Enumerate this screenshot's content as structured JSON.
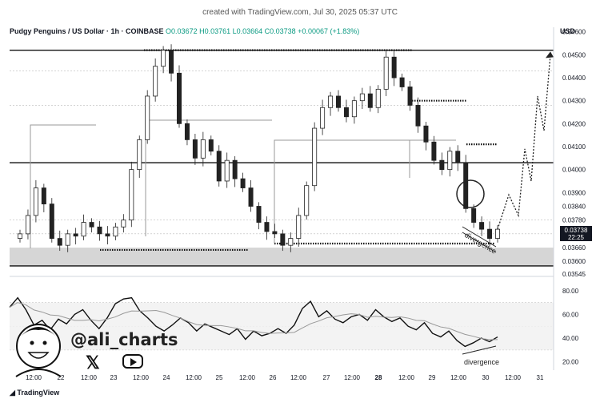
{
  "header": {
    "created_text": "created with TradingView.com, Jul 30, 2025 05:37 UTC",
    "pair": "Pudgy Penguins / US Dollar · 1h · COINBASE",
    "ohlc": "O0.03672 H0.03761 L0.03664 C0.03738 +0.00067 (+1.83%)",
    "currency": "USD"
  },
  "branding": {
    "handle": "@ali_charts",
    "x_icon": "𝕏",
    "youtube_icon": "youtube-icon",
    "footer": "TradingView"
  },
  "annotations": {
    "divergence_price": "divergence",
    "divergence_rsi": "divergence"
  },
  "last_price": {
    "price": "0.03738",
    "countdown": "22:25"
  },
  "chart_data": [
    {
      "type": "line",
      "name": "price",
      "x_ticks": [
        "12:00",
        "22",
        "12:00",
        "23",
        "12:00",
        "24",
        "12:00",
        "25",
        "12:00",
        "26",
        "12:00",
        "27",
        "12:00",
        "28",
        "12:00",
        "29",
        "12:00",
        "30",
        "12:00",
        "31"
      ],
      "y_ticks": [
        "0.04600",
        "0.04500",
        "0.04400",
        "0.04300",
        "0.04200",
        "0.04100",
        "0.04000",
        "0.03900",
        "0.03840",
        "0.03780",
        "0.03660",
        "0.03600",
        "0.03545"
      ],
      "close": [
        0.0372,
        0.038,
        0.0392,
        0.0385,
        0.037,
        0.0367,
        0.0372,
        0.0371,
        0.0377,
        0.0375,
        0.0372,
        0.0371,
        0.0375,
        0.0378,
        0.04,
        0.0413,
        0.0432,
        0.0445,
        0.0452,
        0.0442,
        0.042,
        0.0413,
        0.0405,
        0.0413,
        0.0408,
        0.0395,
        0.0404,
        0.0396,
        0.0392,
        0.0384,
        0.0377,
        0.0373,
        0.0372,
        0.0367,
        0.037,
        0.038,
        0.0393,
        0.0418,
        0.0427,
        0.0432,
        0.0427,
        0.0423,
        0.043,
        0.0433,
        0.0427,
        0.0435,
        0.0449,
        0.044,
        0.0436,
        0.0428,
        0.0419,
        0.0412,
        0.0404,
        0.04,
        0.0408,
        0.0403,
        0.0383,
        0.0377,
        0.0374,
        0.037,
        0.0374
      ],
      "resistance_lines": [
        0.0452,
        0.0403
      ],
      "support_zone": [
        0.0358,
        0.0366
      ],
      "dotted_levels": [
        0.0365,
        0.0452,
        0.043,
        0.0411
      ],
      "projection": [
        0.0374,
        0.0389,
        0.038,
        0.0409,
        0.0395,
        0.0432,
        0.0417,
        0.045
      ]
    },
    {
      "type": "line",
      "name": "RSI",
      "y_ticks": [
        "80.00",
        "60.00",
        "40.00",
        "20.00"
      ],
      "ylim": [
        20,
        80
      ],
      "values": [
        66,
        74,
        64,
        51,
        55,
        47,
        56,
        52,
        60,
        64,
        55,
        48,
        57,
        69,
        73,
        74,
        63,
        57,
        50,
        46,
        51,
        57,
        53,
        46,
        52,
        49,
        46,
        43,
        48,
        39,
        46,
        42,
        44,
        48,
        44,
        51,
        65,
        71,
        58,
        63,
        56,
        53,
        58,
        60,
        55,
        64,
        58,
        54,
        57,
        50,
        47,
        53,
        44,
        41,
        46,
        38,
        33,
        36,
        40,
        37,
        41
      ]
    }
  ]
}
